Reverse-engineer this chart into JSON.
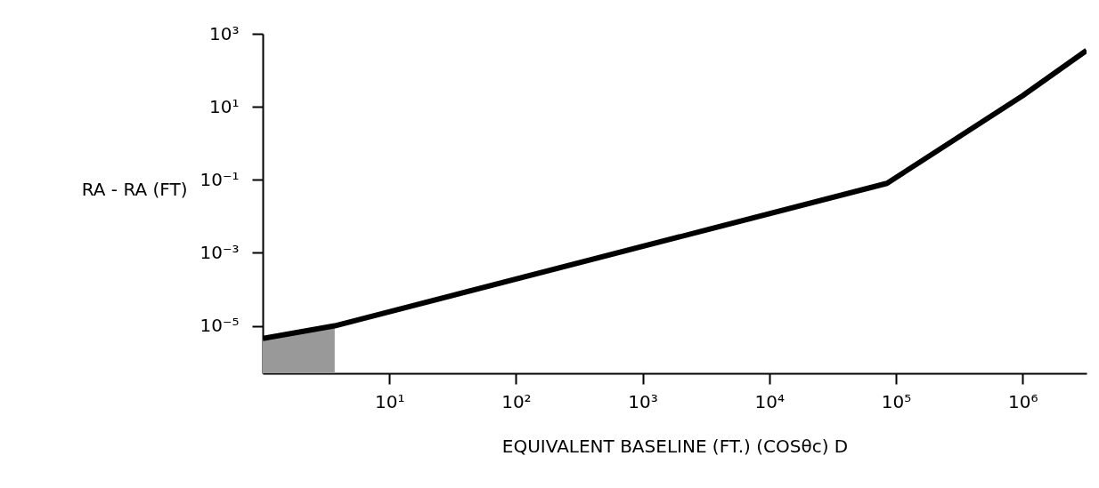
{
  "chart_data": {
    "type": "line",
    "xlabel": "EQUIVALENT BASELINE (FT.)  (COSθc) D",
    "ylabel": "RA - RA (FT)",
    "log": "xy",
    "grid": false,
    "xlim": [
      1,
      3200000
    ],
    "ylim": [
      5e-07,
      1000
    ],
    "xticks": [
      {
        "value": 10,
        "label": "10¹"
      },
      {
        "value": 100,
        "label": "10²"
      },
      {
        "value": 1000,
        "label": "10³"
      },
      {
        "value": 10000,
        "label": "10⁴"
      },
      {
        "value": 100000,
        "label": "10⁵"
      },
      {
        "value": 1000000,
        "label": "10⁶"
      }
    ],
    "yticks": [
      {
        "value": 1e-05,
        "label": "10⁻⁵"
      },
      {
        "value": 0.001,
        "label": "10⁻³"
      },
      {
        "value": 0.1,
        "label": "10⁻¹"
      },
      {
        "value": 10,
        "label": "10¹"
      },
      {
        "value": 1000,
        "label": "10³"
      }
    ],
    "series": [
      {
        "type": "area",
        "color": "#999999",
        "x": [
          1,
          3.7
        ],
        "values": [
          4.5e-06,
          1e-05
        ]
      },
      {
        "color": "#000000",
        "x": [
          1,
          3.7,
          85000,
          1000000,
          3200000
        ],
        "values": [
          4.5e-06,
          1e-05,
          0.08,
          20,
          350
        ]
      }
    ]
  }
}
